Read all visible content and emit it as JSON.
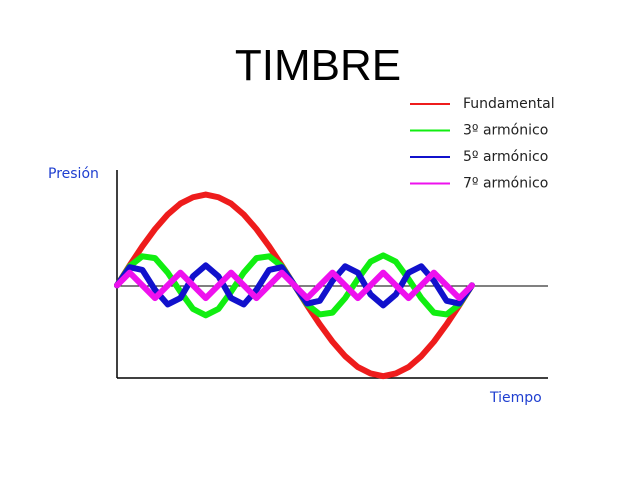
{
  "chart_data": {
    "type": "line",
    "title": "TIMBRE",
    "y_label": "Presión",
    "x_label": "Tiempo",
    "x": [
      0,
      1,
      2,
      3,
      4,
      5,
      6,
      7,
      8,
      9,
      10,
      11,
      12,
      13,
      14,
      15,
      16,
      17,
      18,
      19,
      20,
      21,
      22,
      23,
      24,
      25,
      26,
      27,
      28
    ],
    "xlim": [
      0,
      34
    ],
    "ylim": [
      -1.02,
      1.27
    ],
    "series": [
      {
        "name": "Fundamental",
        "color": "#ee1c1c",
        "values": [
          0,
          0.22,
          0.43,
          0.62,
          0.78,
          0.9,
          0.97,
          1,
          0.97,
          0.9,
          0.78,
          0.62,
          0.43,
          0.22,
          0,
          -0.22,
          -0.43,
          -0.62,
          -0.78,
          -0.9,
          -0.97,
          -1,
          -0.97,
          -0.9,
          -0.78,
          -0.62,
          -0.43,
          -0.22,
          0
        ]
      },
      {
        "name": "3º armónico",
        "color": "#11ee11",
        "values": [
          0,
          0.21,
          0.32,
          0.3,
          0.14,
          -0.07,
          -0.26,
          -0.33,
          -0.26,
          -0.07,
          0.14,
          0.3,
          0.32,
          0.21,
          0,
          -0.21,
          -0.32,
          -0.3,
          -0.14,
          0.07,
          0.26,
          0.33,
          0.26,
          0.07,
          -0.14,
          -0.3,
          -0.32,
          -0.21,
          0
        ]
      },
      {
        "name": "5º armónico",
        "color": "#1111cc",
        "values": [
          0,
          0.2,
          0.17,
          -0.05,
          -0.21,
          -0.14,
          0.1,
          0.22,
          0.1,
          -0.14,
          -0.21,
          -0.05,
          0.17,
          0.2,
          0,
          -0.2,
          -0.17,
          0.05,
          0.21,
          0.14,
          -0.1,
          -0.22,
          -0.1,
          0.14,
          0.21,
          0.05,
          -0.17,
          -0.2,
          0
        ]
      },
      {
        "name": "7º armónico",
        "color": "#ee11ee",
        "values": [
          0,
          0.14,
          0,
          -0.14,
          0,
          0.14,
          0,
          -0.14,
          0,
          0.14,
          0,
          -0.14,
          0,
          0.14,
          0,
          -0.14,
          0,
          0.14,
          0,
          -0.14,
          0,
          0.14,
          0,
          -0.14,
          0,
          0.14,
          0,
          -0.14,
          0
        ]
      }
    ]
  }
}
